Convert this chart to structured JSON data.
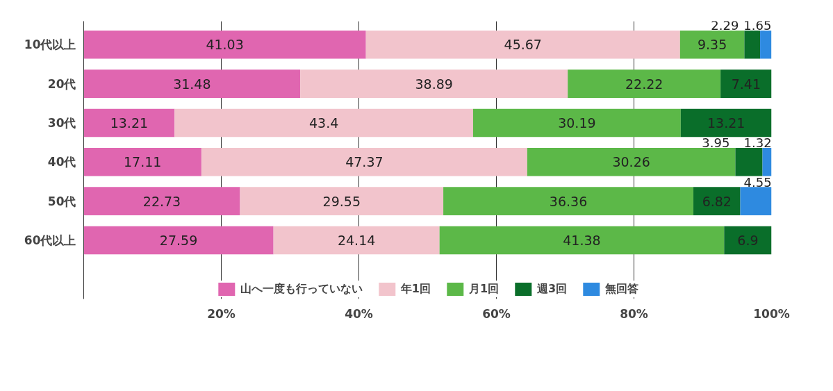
{
  "chart_data": {
    "type": "bar",
    "orientation": "horizontal",
    "stacked": true,
    "data_labels": true,
    "grid": "x",
    "legend": "bottom",
    "categories": [
      "10代以上",
      "20代",
      "30代",
      "40代",
      "50代",
      "60代以上"
    ],
    "xlim": [
      0,
      100
    ],
    "xticks": [
      {
        "value": 0,
        "label": null
      },
      {
        "value": 20,
        "label": "20%"
      },
      {
        "value": 40,
        "label": "40%"
      },
      {
        "value": 60,
        "label": "60%"
      },
      {
        "value": 80,
        "label": "80%"
      },
      {
        "value": 100,
        "label": "100%"
      }
    ],
    "series": [
      {
        "name": "山へ一度も行っていない",
        "color": "#e066b0",
        "values": [
          41.03,
          31.48,
          13.21,
          17.11,
          22.73,
          27.59
        ]
      },
      {
        "name": "年1回",
        "color": "#f2c4cc",
        "values": [
          45.67,
          38.89,
          43.4,
          47.37,
          29.55,
          24.14
        ]
      },
      {
        "name": "月1回",
        "color": "#5cb848",
        "values": [
          9.35,
          22.22,
          30.19,
          30.26,
          36.36,
          41.38
        ]
      },
      {
        "name": "週3回",
        "color": "#0a6e2a",
        "values": [
          2.29,
          7.41,
          13.21,
          3.95,
          6.82,
          6.9
        ]
      },
      {
        "name": "無回答",
        "color": "#2e8ae0",
        "values": [
          1.65,
          null,
          null,
          1.32,
          4.55,
          null
        ]
      }
    ]
  }
}
